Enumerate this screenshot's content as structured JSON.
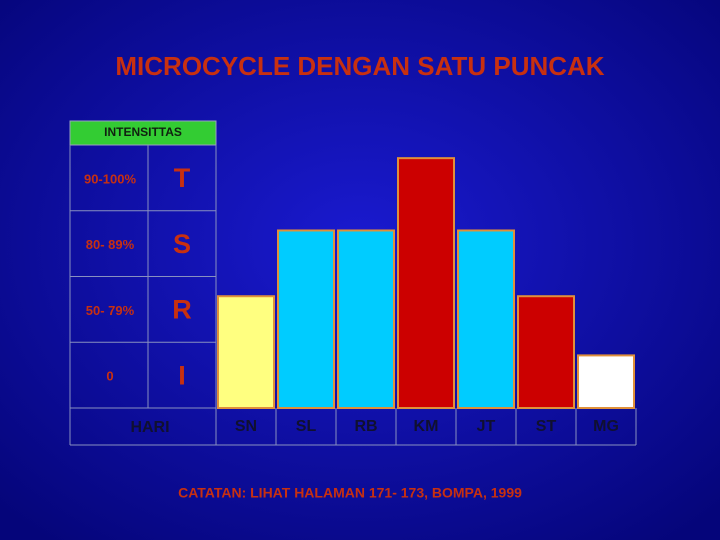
{
  "chart_data": {
    "type": "bar",
    "title": "MICROCYCLE DENGAN SATU PUNCAK",
    "value_axis_header": "INTENSITTAS",
    "levels": [
      {
        "range": "90-100%",
        "label": "T"
      },
      {
        "range": "80- 89%",
        "label": "S"
      },
      {
        "range": "50- 79%",
        "label": "R"
      },
      {
        "range": "0",
        "label": "I"
      }
    ],
    "x_label": "HARI",
    "categories": [
      "SN",
      "SL",
      "RB",
      "KM",
      "JT",
      "ST",
      "MG"
    ],
    "values": [
      1.7,
      2.7,
      2.7,
      3.8,
      2.7,
      1.7,
      0.8
    ],
    "colors": [
      "#ffff80",
      "#00ccff",
      "#00ccff",
      "#cc0000",
      "#00ccff",
      "#cc0000",
      "#ffffff"
    ],
    "ylim": [
      0,
      4
    ],
    "note": "CATATAN: LIHAT HALAMAN 171- 173, BOMPA, 1999"
  }
}
